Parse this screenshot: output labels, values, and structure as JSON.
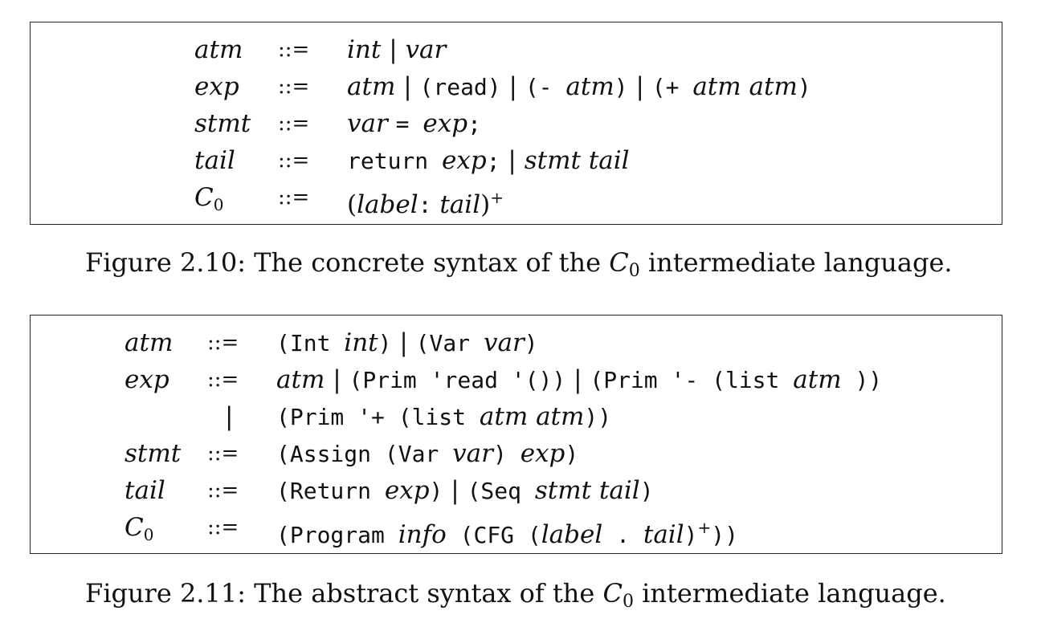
{
  "figure1": {
    "rows": [
      {
        "nt": "atm",
        "op": "::=",
        "rhs": [
          [
            "it",
            "int"
          ],
          [
            "rm",
            " | "
          ],
          [
            "it",
            "var"
          ]
        ]
      },
      {
        "nt": "exp",
        "op": "::=",
        "rhs": [
          [
            "it",
            "atm"
          ],
          [
            "rm",
            " | "
          ],
          [
            "mono",
            "(read)"
          ],
          [
            "rm",
            " | "
          ],
          [
            "mono",
            "(- "
          ],
          [
            "it",
            "atm"
          ],
          [
            "mono",
            ")"
          ],
          [
            "rm",
            " | "
          ],
          [
            "mono",
            "(+ "
          ],
          [
            "it",
            "atm atm"
          ],
          [
            "mono",
            ")"
          ]
        ]
      },
      {
        "nt": "stmt",
        "op": "::=",
        "rhs": [
          [
            "it",
            "var "
          ],
          [
            "mono",
            "= "
          ],
          [
            "it",
            "exp"
          ],
          [
            "mono",
            ";"
          ]
        ]
      },
      {
        "nt": "tail",
        "op": "::=",
        "rhs": [
          [
            "mono",
            "return "
          ],
          [
            "it",
            "exp"
          ],
          [
            "mono",
            ";"
          ],
          [
            "rm",
            " | "
          ],
          [
            "it",
            "stmt tail"
          ]
        ]
      },
      {
        "nt": "C",
        "nt_sub": "0",
        "op": "::=",
        "rhs": [
          [
            "rm",
            "("
          ],
          [
            "it",
            "label"
          ],
          [
            "mono",
            ":"
          ],
          [
            "it",
            " tail"
          ],
          [
            "rm",
            ")"
          ],
          [
            "sup",
            "+"
          ]
        ]
      }
    ],
    "caption_prefix": "Figure 2.10: The concrete syntax of the ",
    "caption_C": "C",
    "caption_sub": "0",
    "caption_suffix": " intermediate language."
  },
  "figure2": {
    "rows": [
      {
        "nt": "atm",
        "op": "::=",
        "rhs": [
          [
            "mono",
            "(Int "
          ],
          [
            "it",
            "int"
          ],
          [
            "mono",
            ")"
          ],
          [
            "rm",
            " | "
          ],
          [
            "mono",
            "(Var "
          ],
          [
            "it",
            "var"
          ],
          [
            "mono",
            ")"
          ]
        ]
      },
      {
        "nt": "exp",
        "op": "::=",
        "rhs": [
          [
            "it",
            "atm"
          ],
          [
            "rm",
            " | "
          ],
          [
            "mono",
            "(Prim 'read '())"
          ],
          [
            "rm",
            " | "
          ],
          [
            "mono",
            "(Prim '- (list "
          ],
          [
            "it",
            "atm"
          ],
          [
            "mono",
            " ))"
          ]
        ]
      },
      {
        "nt": "",
        "op": "|",
        "rhs": [
          [
            "mono",
            "(Prim '+ (list "
          ],
          [
            "it",
            "atm atm"
          ],
          [
            "mono",
            "))"
          ]
        ]
      },
      {
        "nt": "stmt",
        "op": "::=",
        "rhs": [
          [
            "mono",
            "(Assign (Var "
          ],
          [
            "it",
            "var"
          ],
          [
            "mono",
            ") "
          ],
          [
            "it",
            "exp"
          ],
          [
            "mono",
            ")"
          ]
        ]
      },
      {
        "nt": "tail",
        "op": "::=",
        "rhs": [
          [
            "mono",
            "(Return "
          ],
          [
            "it",
            "exp"
          ],
          [
            "mono",
            ")"
          ],
          [
            "rm",
            " | "
          ],
          [
            "mono",
            "(Seq "
          ],
          [
            "it",
            "stmt tail"
          ],
          [
            "mono",
            ")"
          ]
        ]
      },
      {
        "nt": "C",
        "nt_sub": "0",
        "op": "::=",
        "rhs": [
          [
            "mono",
            "(Program "
          ],
          [
            "it",
            "info"
          ],
          [
            "mono",
            " (CFG ("
          ],
          [
            "it",
            "label"
          ],
          [
            "mono",
            " . "
          ],
          [
            "it",
            "tail"
          ],
          [
            "mono",
            ")"
          ],
          [
            "sup",
            "+"
          ],
          [
            "mono",
            "))"
          ]
        ]
      }
    ],
    "caption_prefix": "Figure 2.11: The abstract syntax of the ",
    "caption_C": "C",
    "caption_sub": "0",
    "caption_suffix": " intermediate language."
  }
}
